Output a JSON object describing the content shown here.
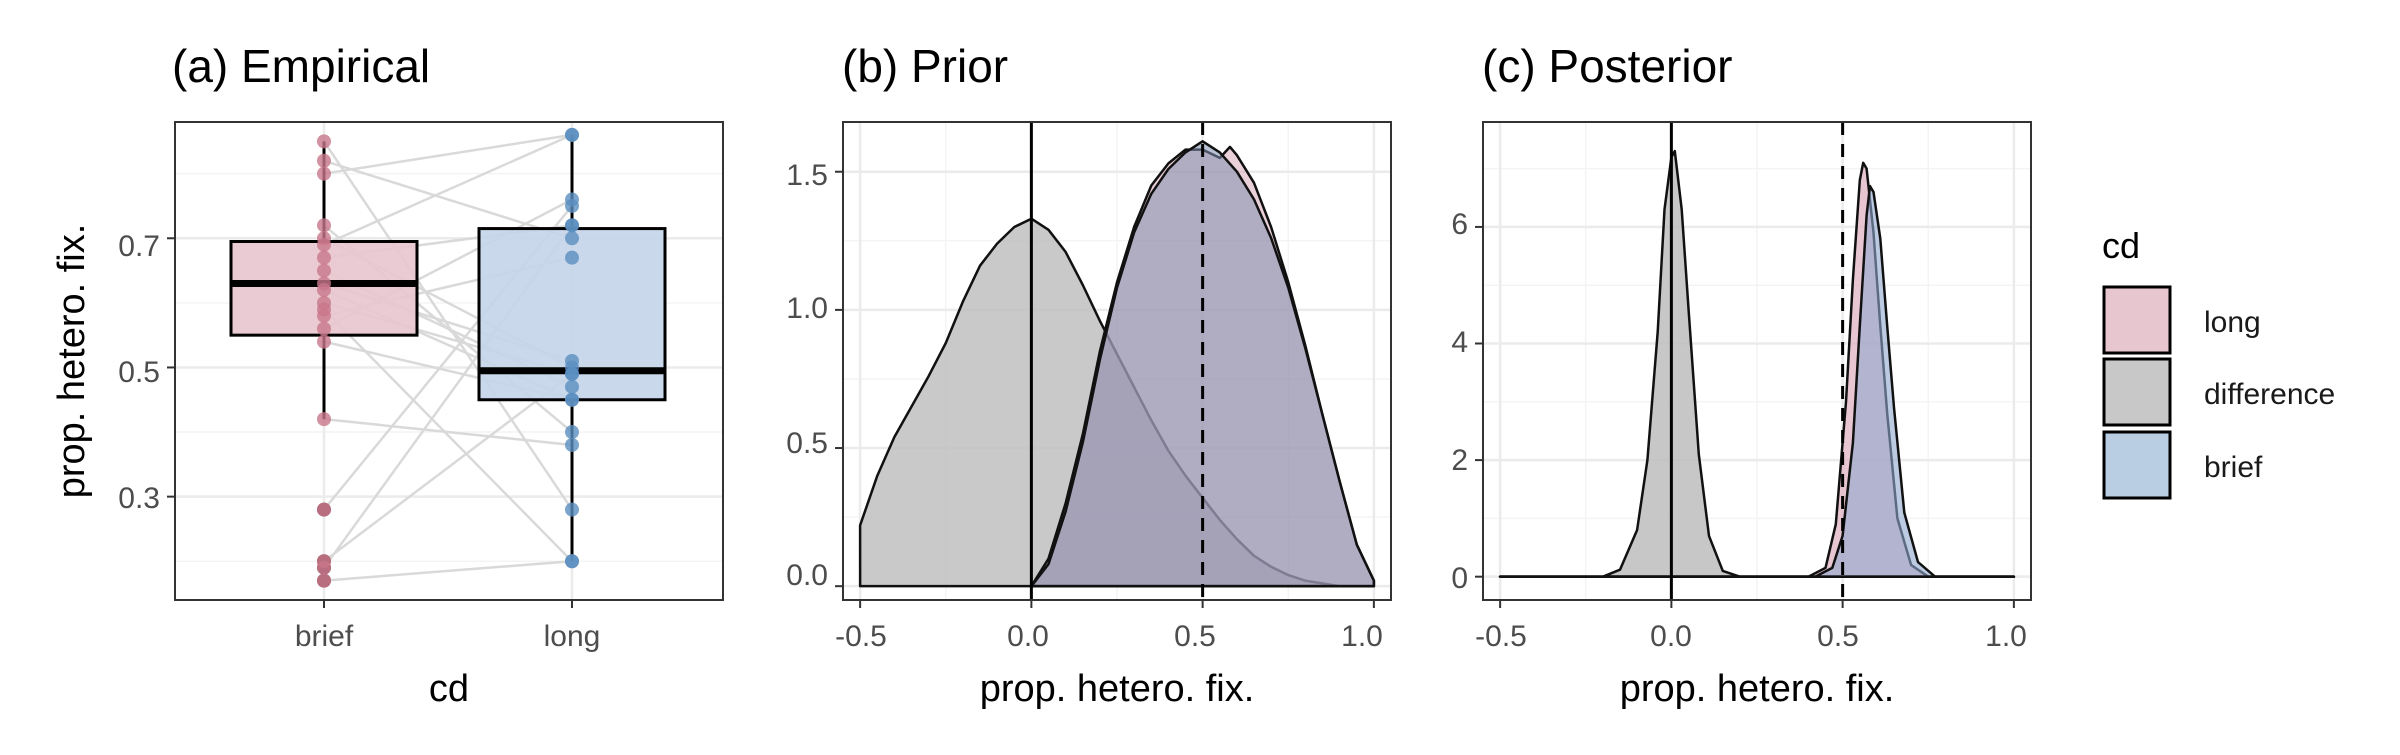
{
  "chart_data": [
    {
      "type": "box",
      "title": "(a) Empirical",
      "xlabel": "cd",
      "ylabel": "prop. hetero. fix.",
      "categories": [
        "brief",
        "long"
      ],
      "yticks": [
        "0.3",
        "0.5",
        "0.7"
      ],
      "ylim": [
        0.14,
        0.88
      ],
      "grid": true,
      "boxes": [
        {
          "category": "brief",
          "q1": 0.55,
          "median": 0.63,
          "q3": 0.695,
          "whisker_low": 0.42,
          "whisker_high": 0.85,
          "outliers": [
            0.28,
            0.2,
            0.19,
            0.17
          ]
        },
        {
          "category": "long",
          "q1": 0.45,
          "median": 0.495,
          "q3": 0.715,
          "whisker_low": 0.2,
          "whisker_high": 0.86,
          "outliers": []
        }
      ],
      "paired_points": [
        [
          0.85,
          0.28
        ],
        [
          0.82,
          0.7
        ],
        [
          0.8,
          0.86
        ],
        [
          0.72,
          0.4
        ],
        [
          0.7,
          0.5
        ],
        [
          0.69,
          0.86
        ],
        [
          0.67,
          0.72
        ],
        [
          0.65,
          0.47
        ],
        [
          0.63,
          0.51
        ],
        [
          0.62,
          0.45
        ],
        [
          0.6,
          0.49
        ],
        [
          0.59,
          0.2
        ],
        [
          0.58,
          0.67
        ],
        [
          0.56,
          0.76
        ],
        [
          0.54,
          0.45
        ],
        [
          0.42,
          0.38
        ],
        [
          0.28,
          0.75
        ],
        [
          0.2,
          0.49
        ],
        [
          0.19,
          0.72
        ],
        [
          0.17,
          0.2
        ]
      ],
      "colors": {
        "brief": "#c8778a",
        "long": "#5b8ec0",
        "lines": "#d9d9d9"
      }
    },
    {
      "type": "area",
      "title": "(b) Prior",
      "xlabel": "prop. hetero. fix.",
      "xticks": [
        "-0.5",
        "0.0",
        "0.5",
        "1.0"
      ],
      "yticks": [
        "0.0",
        "0.5",
        "1.0",
        "1.5"
      ],
      "xlim": [
        -0.55,
        1.05
      ],
      "ylim": [
        -0.05,
        1.68
      ],
      "vlines": [
        {
          "x": 0,
          "style": "solid"
        },
        {
          "x": 0.5,
          "style": "dashed"
        }
      ],
      "grid": true,
      "series": [
        {
          "name": "difference",
          "x": [
            -0.5,
            -0.45,
            -0.4,
            -0.35,
            -0.3,
            -0.25,
            -0.2,
            -0.15,
            -0.1,
            -0.05,
            0.0,
            0.05,
            0.1,
            0.15,
            0.2,
            0.25,
            0.3,
            0.35,
            0.4,
            0.45,
            0.5,
            0.55,
            0.6,
            0.65,
            0.7,
            0.75,
            0.8,
            0.85,
            0.9,
            0.95,
            1.0
          ],
          "y": [
            0.22,
            0.4,
            0.54,
            0.65,
            0.76,
            0.88,
            1.03,
            1.16,
            1.24,
            1.3,
            1.33,
            1.29,
            1.21,
            1.09,
            0.96,
            0.84,
            0.72,
            0.6,
            0.49,
            0.4,
            0.32,
            0.24,
            0.17,
            0.11,
            0.07,
            0.04,
            0.02,
            0.01,
            0.0,
            0.0,
            0.0
          ]
        },
        {
          "name": "long",
          "x": [
            0.0,
            0.05,
            0.1,
            0.15,
            0.2,
            0.25,
            0.3,
            0.35,
            0.4,
            0.45,
            0.5,
            0.55,
            0.58,
            0.6,
            0.65,
            0.7,
            0.75,
            0.8,
            0.85,
            0.9,
            0.95,
            1.0
          ],
          "y": [
            0.0,
            0.1,
            0.3,
            0.55,
            0.85,
            1.1,
            1.3,
            1.45,
            1.53,
            1.58,
            1.58,
            1.55,
            1.59,
            1.56,
            1.46,
            1.3,
            1.1,
            0.87,
            0.62,
            0.38,
            0.15,
            0.02
          ]
        },
        {
          "name": "brief",
          "x": [
            0.0,
            0.05,
            0.1,
            0.15,
            0.2,
            0.25,
            0.3,
            0.35,
            0.4,
            0.45,
            0.5,
            0.55,
            0.6,
            0.65,
            0.7,
            0.75,
            0.8,
            0.85,
            0.9,
            0.95,
            1.0
          ],
          "y": [
            0.0,
            0.08,
            0.27,
            0.52,
            0.82,
            1.08,
            1.28,
            1.42,
            1.51,
            1.57,
            1.61,
            1.57,
            1.5,
            1.4,
            1.26,
            1.08,
            0.86,
            0.62,
            0.38,
            0.15,
            0.02
          ]
        }
      ]
    },
    {
      "type": "area",
      "title": "(c) Posterior",
      "xlabel": "prop. hetero. fix.",
      "xticks": [
        "-0.5",
        "0.0",
        "0.5",
        "1.0"
      ],
      "yticks": [
        "0",
        "2",
        "4",
        "6"
      ],
      "xlim": [
        -0.55,
        1.05
      ],
      "ylim": [
        -0.4,
        7.8
      ],
      "vlines": [
        {
          "x": 0,
          "style": "solid"
        },
        {
          "x": 0.5,
          "style": "dashed"
        }
      ],
      "grid": true,
      "series": [
        {
          "name": "difference",
          "x": [
            -0.5,
            -0.2,
            -0.15,
            -0.1,
            -0.07,
            -0.04,
            -0.02,
            0.0,
            0.01,
            0.03,
            0.05,
            0.08,
            0.11,
            0.15,
            0.2,
            1.0
          ],
          "y": [
            0.0,
            0.0,
            0.12,
            0.8,
            2.0,
            4.2,
            6.3,
            7.2,
            7.3,
            6.3,
            4.6,
            2.1,
            0.7,
            0.1,
            0.0,
            0.0
          ]
        },
        {
          "name": "long",
          "x": [
            -0.5,
            0.4,
            0.45,
            0.48,
            0.51,
            0.53,
            0.55,
            0.56,
            0.57,
            0.59,
            0.61,
            0.63,
            0.66,
            0.7,
            0.75,
            1.0
          ],
          "y": [
            0.0,
            0.0,
            0.15,
            0.9,
            3.0,
            5.1,
            6.8,
            7.1,
            7.0,
            5.9,
            4.3,
            2.8,
            1.0,
            0.2,
            0.0,
            0.0
          ]
        },
        {
          "name": "brief",
          "x": [
            -0.5,
            0.42,
            0.47,
            0.5,
            0.53,
            0.55,
            0.57,
            0.58,
            0.59,
            0.61,
            0.63,
            0.65,
            0.68,
            0.72,
            0.77,
            1.0
          ],
          "y": [
            0.0,
            0.0,
            0.15,
            0.7,
            2.3,
            4.3,
            6.2,
            6.7,
            6.6,
            5.8,
            4.3,
            2.9,
            1.1,
            0.25,
            0.0,
            0.0
          ]
        }
      ]
    }
  ],
  "legend": {
    "title": "cd",
    "entries": [
      {
        "label": "long",
        "color": "#e8c6cf"
      },
      {
        "label": "difference",
        "color": "#b8b8b8"
      },
      {
        "label": "brief",
        "color": "#b9cde3"
      }
    ]
  },
  "colors": {
    "long_fill": "#e8c6cf",
    "brief_fill": "#9fb9d8",
    "difference_fill": "#c8c8c8",
    "prior_overlap": "#9d9aac",
    "axis_text": "#4d4d4d",
    "grid": "#ebebeb"
  }
}
